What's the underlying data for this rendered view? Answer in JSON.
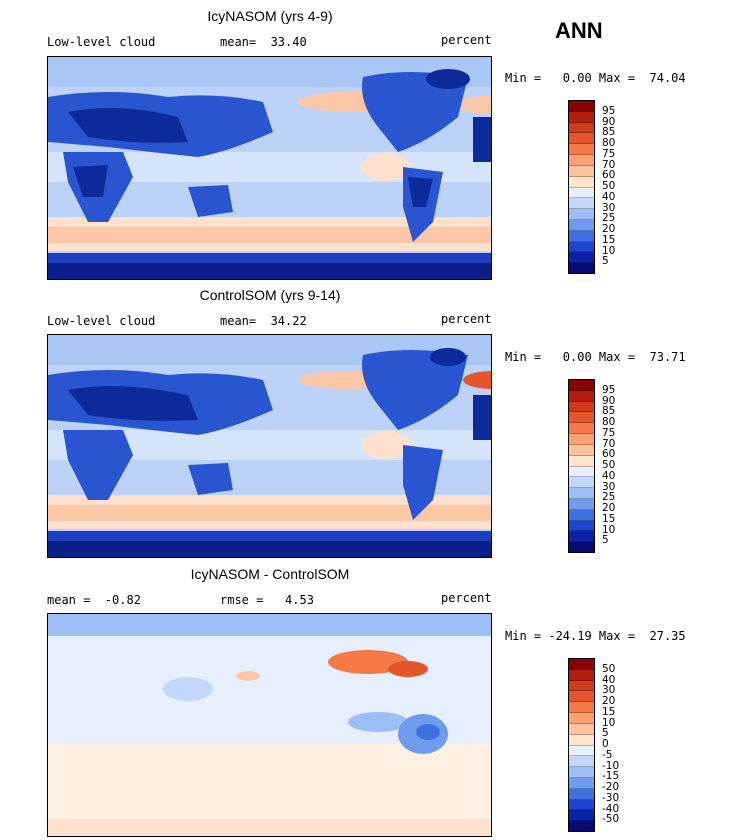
{
  "season": "ANN",
  "panels": [
    {
      "title": "IcyNASOM (yrs 4-9)",
      "left_label": "Low-level cloud",
      "center_label": "mean=  33.40",
      "right_label": "percent",
      "minmax": "Min =   0.00 Max =  74.04",
      "levels": [
        "95",
        "90",
        "85",
        "80",
        "75",
        "70",
        "60",
        "50",
        "40",
        "30",
        "25",
        "20",
        "15",
        "10",
        "5"
      ],
      "colors": [
        "#8b0000",
        "#b21e10",
        "#cf3a1c",
        "#e5552b",
        "#f57a46",
        "#fca072",
        "#fdc29e",
        "#ffe4cc",
        "#e6efff",
        "#c3d7fb",
        "#9dbdf5",
        "#6f9bec",
        "#3f70e0",
        "#1c45d0",
        "#0b22a8",
        "#060c74"
      ]
    },
    {
      "title": "ControlSOM (yrs 9-14)",
      "left_label": "Low-level cloud",
      "center_label": "mean=  34.22",
      "right_label": "percent",
      "minmax": "Min =   0.00 Max =  73.71",
      "levels": [
        "95",
        "90",
        "85",
        "80",
        "75",
        "70",
        "60",
        "50",
        "40",
        "30",
        "25",
        "20",
        "15",
        "10",
        "5"
      ],
      "colors": [
        "#8b0000",
        "#b21e10",
        "#cf3a1c",
        "#e5552b",
        "#f57a46",
        "#fca072",
        "#fdc29e",
        "#ffe4cc",
        "#e6efff",
        "#c3d7fb",
        "#9dbdf5",
        "#6f9bec",
        "#3f70e0",
        "#1c45d0",
        "#0b22a8",
        "#060c74"
      ]
    },
    {
      "title": "IcyNASOM - ControlSOM",
      "left_label": "mean =  -0.82",
      "center_label": "rmse =   4.53",
      "right_label": "percent",
      "minmax": "Min = -24.19 Max =  27.35",
      "levels": [
        "50",
        "40",
        "30",
        "20",
        "15",
        "10",
        "5",
        "0",
        "-5",
        "-10",
        "-15",
        "-20",
        "-30",
        "-40",
        "-50"
      ],
      "colors": [
        "#8b0000",
        "#b21e10",
        "#cf3a1c",
        "#e5552b",
        "#f57a46",
        "#fca072",
        "#fdc29e",
        "#ffe4cc",
        "#e6efff",
        "#c3d7fb",
        "#9dbdf5",
        "#6f9bec",
        "#3f70e0",
        "#1c45d0",
        "#0b22a8",
        "#060c74"
      ]
    }
  ]
}
